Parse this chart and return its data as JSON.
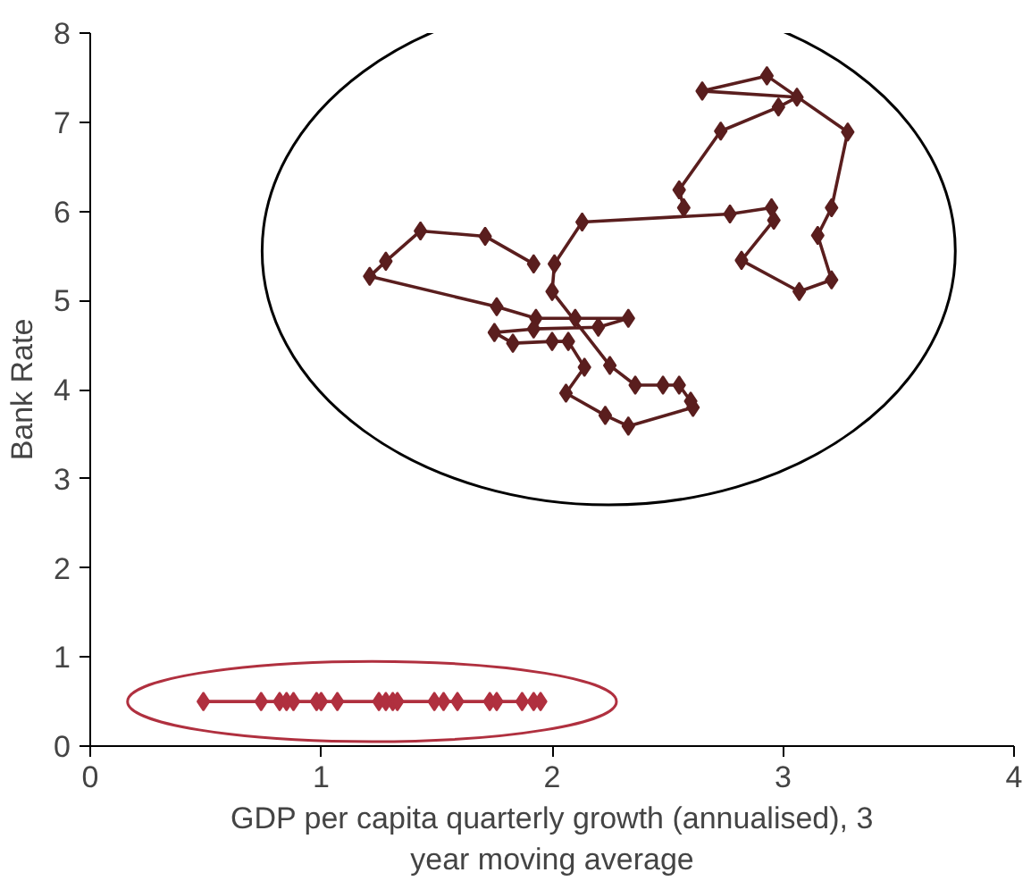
{
  "chart_data": {
    "type": "line",
    "xlabel": "GDP per capita quarterly growth (annualised), 3 year moving average",
    "ylabel": "Bank Rate",
    "xlim": [
      0,
      4
    ],
    "ylim": [
      0,
      8
    ],
    "xticks": [
      0,
      1,
      2,
      3,
      4
    ],
    "yticks": [
      0,
      1,
      2,
      3,
      4,
      5,
      6,
      7,
      8
    ],
    "grid": false,
    "marker": "diamond",
    "line_style": "solid",
    "series": [
      {
        "color": "#5a1e1e",
        "x": [
          1.92,
          1.71,
          1.43,
          1.28,
          1.21,
          1.76,
          1.93,
          2.1,
          2.33,
          2.2,
          1.92,
          1.75,
          1.83,
          2.0,
          2.07,
          2.14,
          2.06,
          2.23,
          2.33,
          2.61,
          2.6,
          2.55,
          2.48,
          2.36,
          2.25,
          2.0,
          2.01,
          2.13,
          2.77,
          2.95,
          2.96,
          2.82,
          3.07,
          3.21,
          3.15,
          3.21,
          3.28,
          2.93,
          2.65,
          3.06,
          2.98,
          2.73,
          2.55,
          2.57
        ],
        "values": [
          5.41,
          5.72,
          5.78,
          5.44,
          5.27,
          4.93,
          4.8,
          4.8,
          4.8,
          4.7,
          4.68,
          4.64,
          4.52,
          4.54,
          4.54,
          4.25,
          3.96,
          3.71,
          3.59,
          3.8,
          3.87,
          4.05,
          4.05,
          4.05,
          4.27,
          5.1,
          5.41,
          5.88,
          5.97,
          6.04,
          5.9,
          5.45,
          5.1,
          5.23,
          5.73,
          6.04,
          6.89,
          7.52,
          7.35,
          7.28,
          7.17,
          6.9,
          6.24,
          6.04
        ]
      },
      {
        "color": "#b0303f",
        "x": [
          0.49,
          0.74,
          0.82,
          0.85,
          0.88,
          0.98,
          1.0,
          1.07,
          1.25,
          1.28,
          1.31,
          1.33,
          1.49,
          1.53,
          1.59,
          1.73,
          1.76,
          1.87,
          1.92,
          1.95
        ],
        "values": [
          0.5,
          0.5,
          0.5,
          0.5,
          0.5,
          0.5,
          0.5,
          0.5,
          0.5,
          0.5,
          0.5,
          0.5,
          0.5,
          0.5,
          0.5,
          0.5,
          0.5,
          0.5,
          0.5,
          0.5
        ]
      }
    ]
  }
}
